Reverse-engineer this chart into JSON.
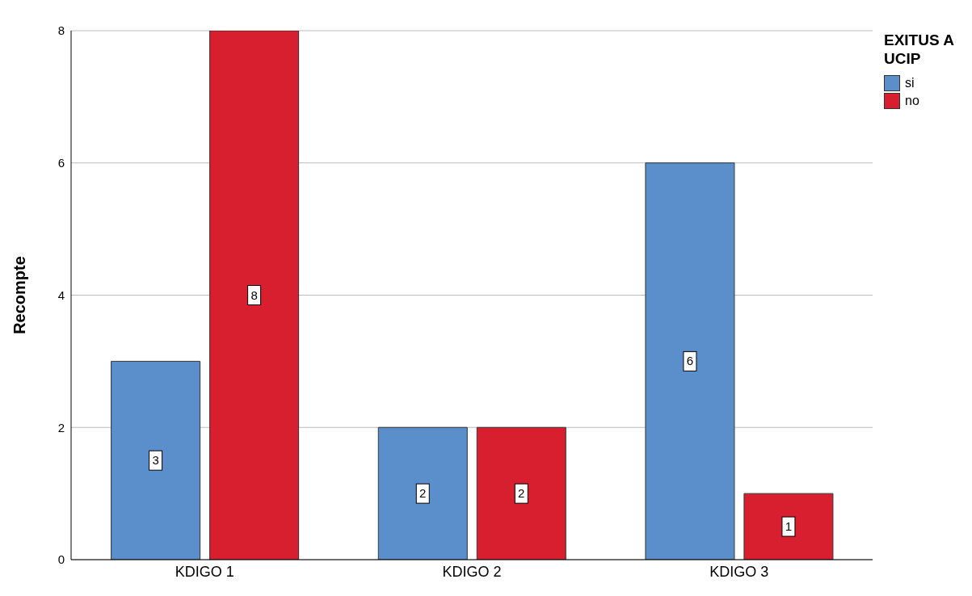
{
  "chart_data": {
    "type": "bar",
    "ylabel": "Recompte",
    "legend_title": "EXITUS A UCIP",
    "categories": [
      "KDIGO 1",
      "KDIGO 2",
      "KDIGO 3"
    ],
    "series": [
      {
        "name": "si",
        "color": "#5b8fcc",
        "values": [
          3,
          2,
          6
        ]
      },
      {
        "name": "no",
        "color": "#d71f30",
        "values": [
          8,
          2,
          1
        ]
      }
    ],
    "ylim": [
      0,
      8
    ],
    "yticks": [
      0,
      2,
      4,
      6,
      8
    ],
    "grid": "y",
    "legend": "top right",
    "data_labels": true
  }
}
